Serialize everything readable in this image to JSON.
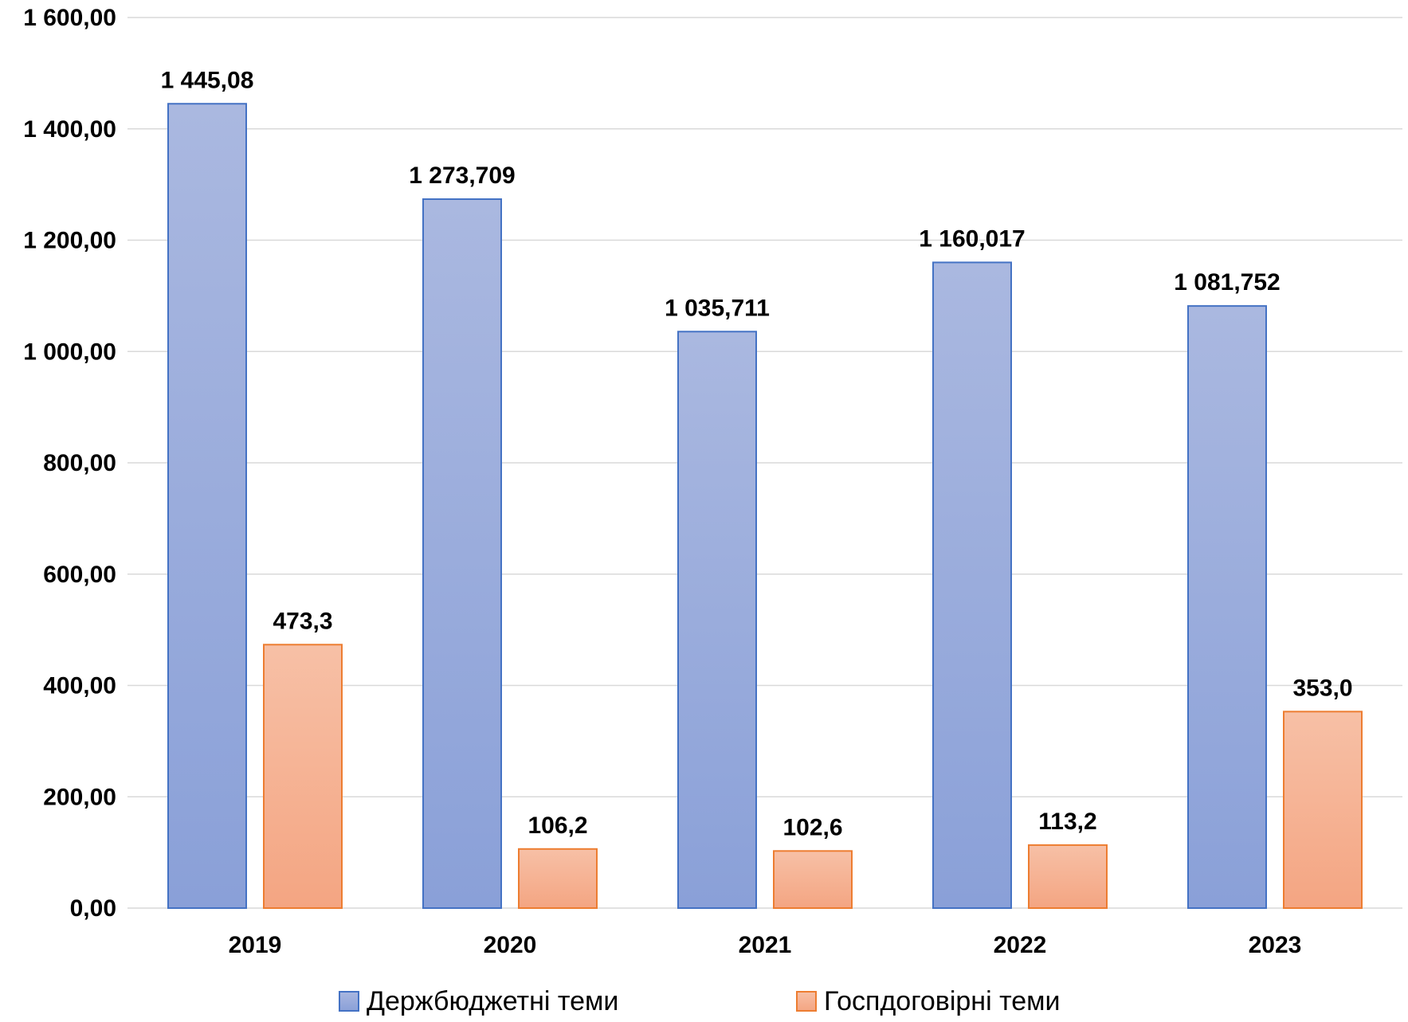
{
  "chart_data": {
    "type": "bar",
    "categories": [
      "2019",
      "2020",
      "2021",
      "2022",
      "2023"
    ],
    "series": [
      {
        "name": "Держбюджетні теми",
        "values": [
          1445.08,
          1273.709,
          1035.711,
          1160.017,
          1081.752
        ],
        "labels": [
          "1 445,08",
          "1 273,709",
          "1 035,711",
          "1 160,017",
          "1 081,752"
        ],
        "color_top": "#aab8e0",
        "color_bottom": "#8aa0d8",
        "stroke": "#4472c4"
      },
      {
        "name": "Госпдоговірні теми",
        "values": [
          473.3,
          106.2,
          102.6,
          113.2,
          353.0
        ],
        "labels": [
          "473,3",
          "106,2",
          "102,6",
          "113,2",
          "353,0"
        ],
        "color_top": "#f7c0a6",
        "color_bottom": "#f4a582",
        "stroke": "#ed7d31"
      }
    ],
    "ylim": [
      0,
      1600
    ],
    "yticks": [
      0,
      200,
      400,
      600,
      800,
      1000,
      1200,
      1400,
      1600
    ],
    "ytick_labels": [
      "0,00",
      "200,00",
      "400,00",
      "600,00",
      "800,00",
      "1 000,00",
      "1 200,00",
      "1 400,00",
      "1 600,00"
    ],
    "grid": true,
    "legend_position": "bottom"
  }
}
